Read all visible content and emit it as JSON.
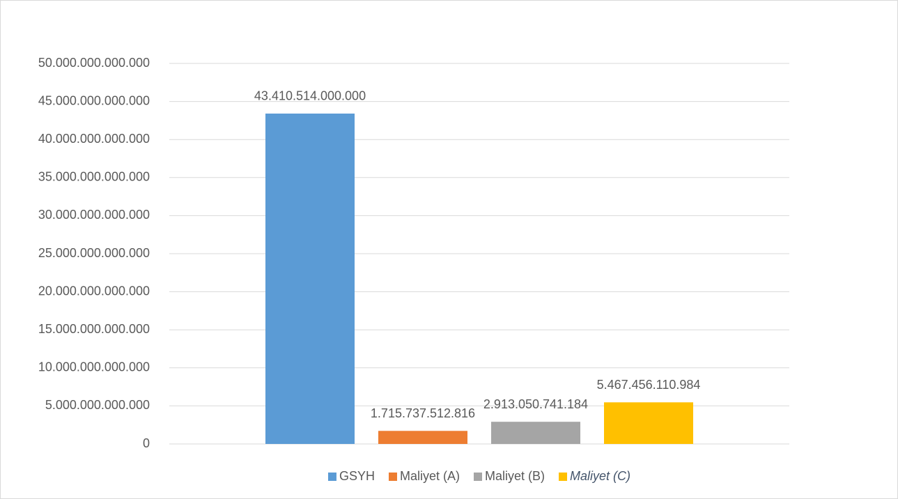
{
  "chart_data": {
    "type": "bar",
    "categories": [
      null
    ],
    "series": [
      {
        "name": "GSYH",
        "color": "#5b9bd5",
        "values": [
          43410514000000
        ],
        "value_labels": [
          "43.410.514.000.000"
        ]
      },
      {
        "name": "Maliyet (A)",
        "color": "#ed7d31",
        "values": [
          1715737512816
        ],
        "value_labels": [
          "1.715.737.512.816"
        ]
      },
      {
        "name": "Maliyet (B)",
        "color": "#a5a5a5",
        "values": [
          2913050741184
        ],
        "value_labels": [
          "2.913.050.741.184"
        ]
      },
      {
        "name": "Maliyet (C)",
        "color": "#ffc000",
        "values": [
          5467456110984
        ],
        "value_labels": [
          "5.467.456.110.984"
        ]
      }
    ],
    "ylim": [
      0,
      50000000000000
    ],
    "yticks": [
      0,
      {
        "value": 5000000000000,
        "label": "5.000.000.000.000"
      },
      {
        "value": 10000000000000,
        "label": "10.000.000.000.000"
      },
      {
        "value": 15000000000000,
        "label": "15.000.000.000.000"
      },
      {
        "value": 20000000000000,
        "label": "20.000.000.000.000"
      },
      {
        "value": 25000000000000,
        "label": "25.000.000.000.000"
      },
      {
        "value": 30000000000000,
        "label": "30.000.000.000.000"
      },
      {
        "value": 35000000000000,
        "label": "35.000.000.000.000"
      },
      {
        "value": 40000000000000,
        "label": "40.000.000.000.000"
      },
      {
        "value": 45000000000000,
        "label": "45.000.000.000.000"
      },
      {
        "value": 50000000000000,
        "label": "50.000.000.000.000"
      }
    ],
    "grid": true,
    "legend": "bottom"
  }
}
